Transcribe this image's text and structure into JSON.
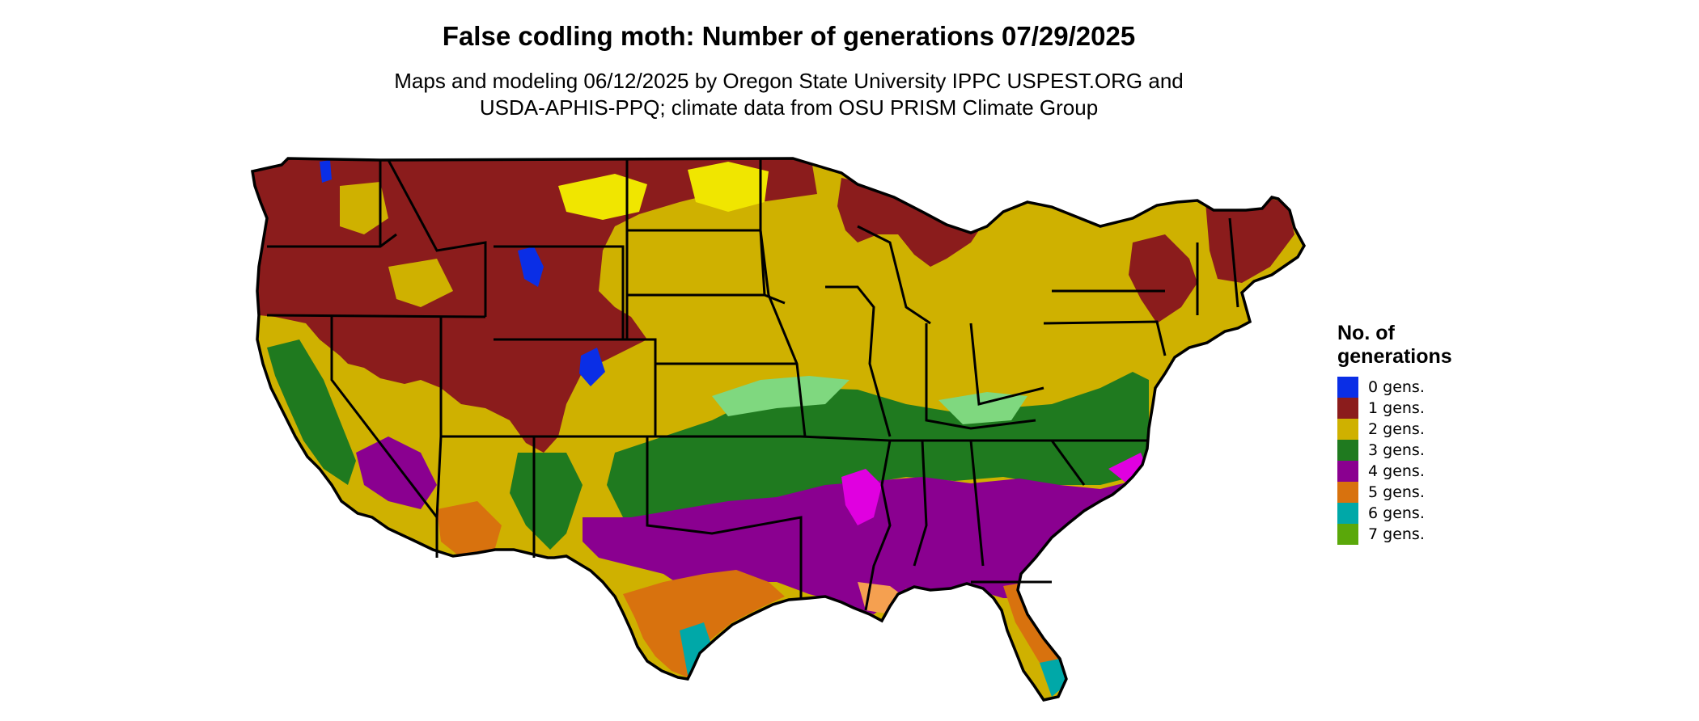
{
  "title": "False codling moth: Number of generations 07/29/2025",
  "subtitle_lines": [
    "Maps and modeling 06/12/2025 by Oregon State University IPPC USPEST.ORG and",
    "USDA-APHIS-PPQ; climate data from OSU PRISM Climate Group"
  ],
  "legend": {
    "title_lines": [
      "No. of",
      "generations"
    ],
    "items": [
      {
        "label": "0 gens.",
        "color": "#0a2ee6"
      },
      {
        "label": "1 gens.",
        "color": "#8b1c1c"
      },
      {
        "label": "2 gens.",
        "color": "#cfb100"
      },
      {
        "label": "3 gens.",
        "color": "#1f7a1f"
      },
      {
        "label": "4 gens.",
        "color": "#8a0090"
      },
      {
        "label": "5 gens.",
        "color": "#d8720e"
      },
      {
        "label": "6 gens.",
        "color": "#00a8a8"
      },
      {
        "label": "7 gens.",
        "color": "#5aa80a"
      }
    ]
  },
  "map": {
    "region": "Conterminous United States",
    "light_variants": {
      "2 gens.": "#f0e600",
      "3 gens.": "#7fd87f",
      "4 gens.": "#e000e0",
      "5 gens.": "#f5a050"
    }
  }
}
